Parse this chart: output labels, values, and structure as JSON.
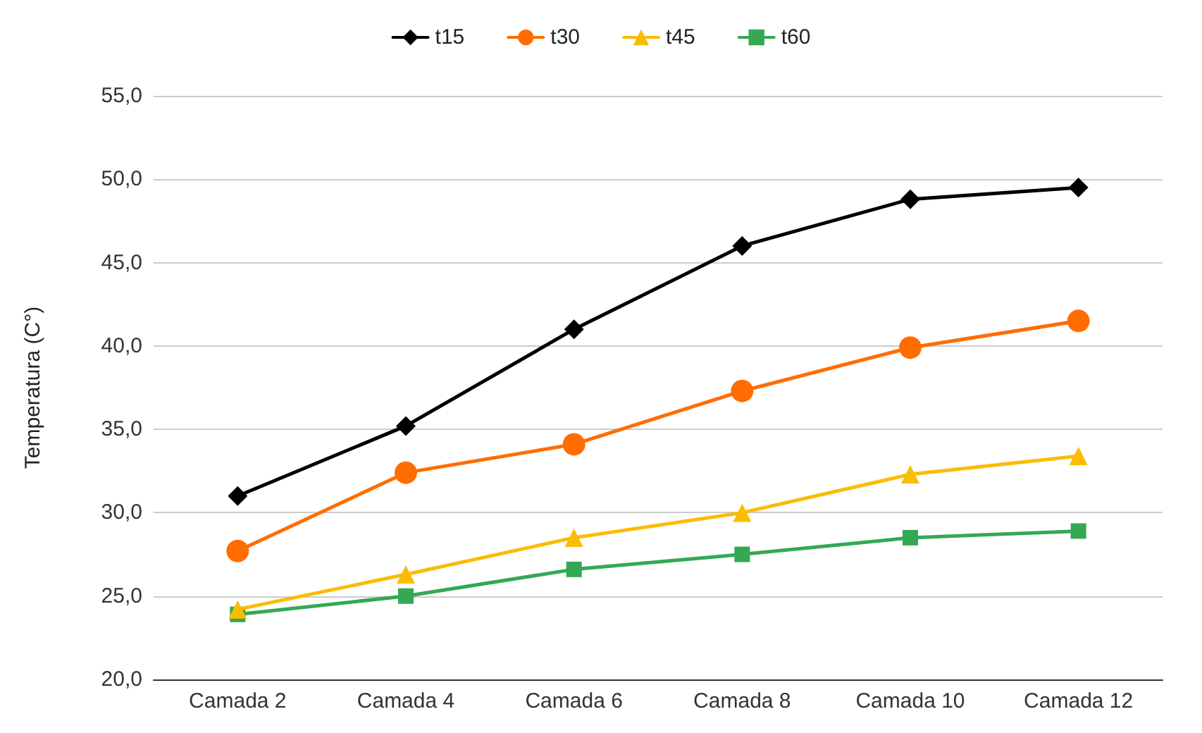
{
  "chart_data": {
    "type": "line",
    "ylabel": "Temperatura (C°)",
    "categories": [
      "Camada 2",
      "Camada 4",
      "Camada 6",
      "Camada 8",
      "Camada 10",
      "Camada 12"
    ],
    "series": [
      {
        "name": "t15",
        "color": "#000000",
        "marker": "diamond",
        "values": [
          31.0,
          35.2,
          41.0,
          46.0,
          48.8,
          49.5
        ]
      },
      {
        "name": "t30",
        "color": "#ff6d01",
        "marker": "circle",
        "values": [
          27.7,
          32.4,
          34.1,
          37.3,
          39.9,
          41.5
        ]
      },
      {
        "name": "t45",
        "color": "#fbbc04",
        "marker": "triangle",
        "values": [
          24.2,
          26.3,
          28.5,
          30.0,
          32.3,
          33.4
        ]
      },
      {
        "name": "t60",
        "color": "#34a853",
        "marker": "square",
        "values": [
          23.9,
          25.0,
          26.6,
          27.5,
          28.5,
          28.9
        ]
      }
    ],
    "ylim": [
      20,
      55
    ],
    "yticks": [
      {
        "value": 20,
        "label": "20,0"
      },
      {
        "value": 25,
        "label": "25,0"
      },
      {
        "value": 30,
        "label": "30,0"
      },
      {
        "value": 35,
        "label": "35,0"
      },
      {
        "value": 40,
        "label": "40,0"
      },
      {
        "value": 45,
        "label": "45,0"
      },
      {
        "value": 50,
        "label": "50,0"
      },
      {
        "value": 55,
        "label": "55,0"
      }
    ],
    "grid": "y",
    "legend": "top",
    "line_style": "solid"
  }
}
